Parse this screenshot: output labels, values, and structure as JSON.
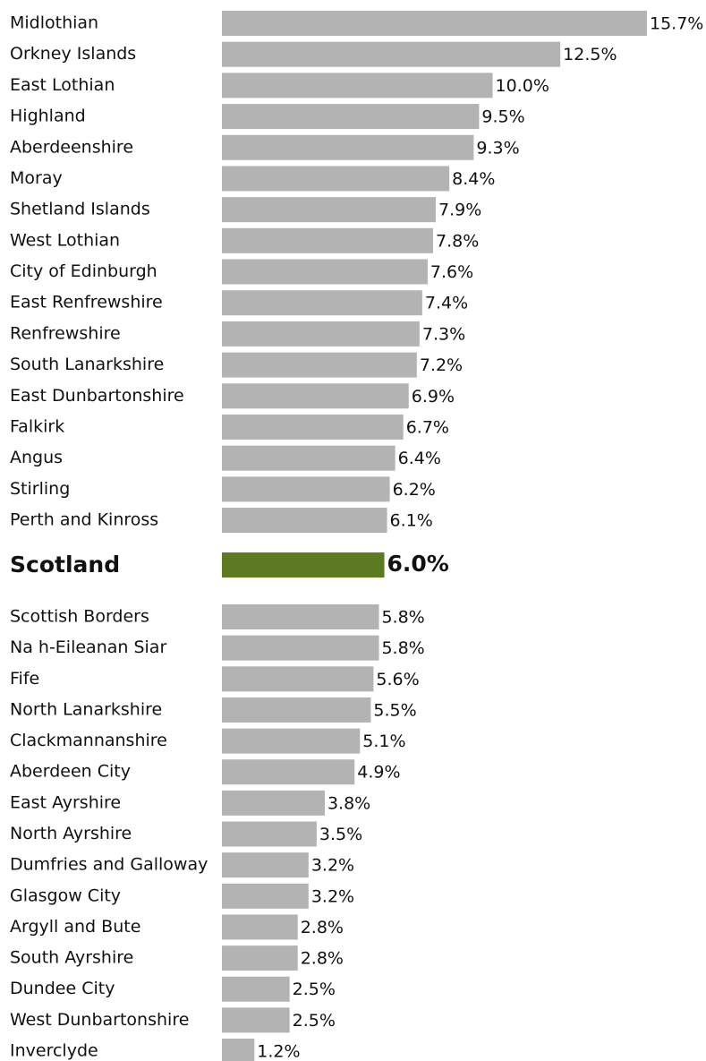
{
  "chart_data": {
    "type": "bar",
    "orientation": "horizontal",
    "categories": [
      "Midlothian",
      "Orkney Islands",
      "East Lothian",
      "Highland",
      "Aberdeenshire",
      "Moray",
      "Shetland Islands",
      "West Lothian",
      "City of Edinburgh",
      "East Renfrewshire",
      "Renfrewshire",
      "South Lanarkshire",
      "East Dunbartonshire",
      "Falkirk",
      "Angus",
      "Stirling",
      "Perth and Kinross",
      "Scotland",
      "Scottish Borders",
      "Na h-Eileanan Siar",
      "Fife",
      "North Lanarkshire",
      "Clackmannanshire",
      "Aberdeen City",
      "East Ayrshire",
      "North Ayrshire",
      "Dumfries and Galloway",
      "Glasgow City",
      "Argyll and Bute",
      "South Ayrshire",
      "Dundee City",
      "West Dunbartonshire",
      "Inverclyde"
    ],
    "values": [
      15.7,
      12.5,
      10.0,
      9.5,
      9.3,
      8.4,
      7.9,
      7.8,
      7.6,
      7.4,
      7.3,
      7.2,
      6.9,
      6.7,
      6.4,
      6.2,
      6.1,
      6.0,
      5.8,
      5.8,
      5.6,
      5.5,
      5.1,
      4.9,
      3.8,
      3.5,
      3.2,
      3.2,
      2.8,
      2.8,
      2.5,
      2.5,
      1.2
    ],
    "value_labels": [
      "15.7%",
      "12.5%",
      "10.0%",
      "9.5%",
      "9.3%",
      "8.4%",
      "7.9%",
      "7.8%",
      "7.6%",
      "7.4%",
      "7.3%",
      "7.2%",
      "6.9%",
      "6.7%",
      "6.4%",
      "6.2%",
      "6.1%",
      "6.0%",
      "5.8%",
      "5.8%",
      "5.6%",
      "5.5%",
      "5.1%",
      "4.9%",
      "3.8%",
      "3.5%",
      "3.2%",
      "3.2%",
      "2.8%",
      "2.8%",
      "2.5%",
      "2.5%",
      "1.2%"
    ],
    "colors": [
      "#b3b3b3",
      "#b3b3b3",
      "#b3b3b3",
      "#b3b3b3",
      "#b3b3b3",
      "#b3b3b3",
      "#b3b3b3",
      "#b3b3b3",
      "#b3b3b3",
      "#b3b3b3",
      "#b3b3b3",
      "#b3b3b3",
      "#b3b3b3",
      "#b3b3b3",
      "#b3b3b3",
      "#b3b3b3",
      "#b3b3b3",
      "#5b7a22",
      "#b3b3b3",
      "#b3b3b3",
      "#b3b3b3",
      "#b3b3b3",
      "#b3b3b3",
      "#b3b3b3",
      "#b3b3b3",
      "#b3b3b3",
      "#b3b3b3",
      "#b3b3b3",
      "#b3b3b3",
      "#b3b3b3",
      "#b3b3b3",
      "#b3b3b3",
      "#b3b3b3"
    ]
  }
}
